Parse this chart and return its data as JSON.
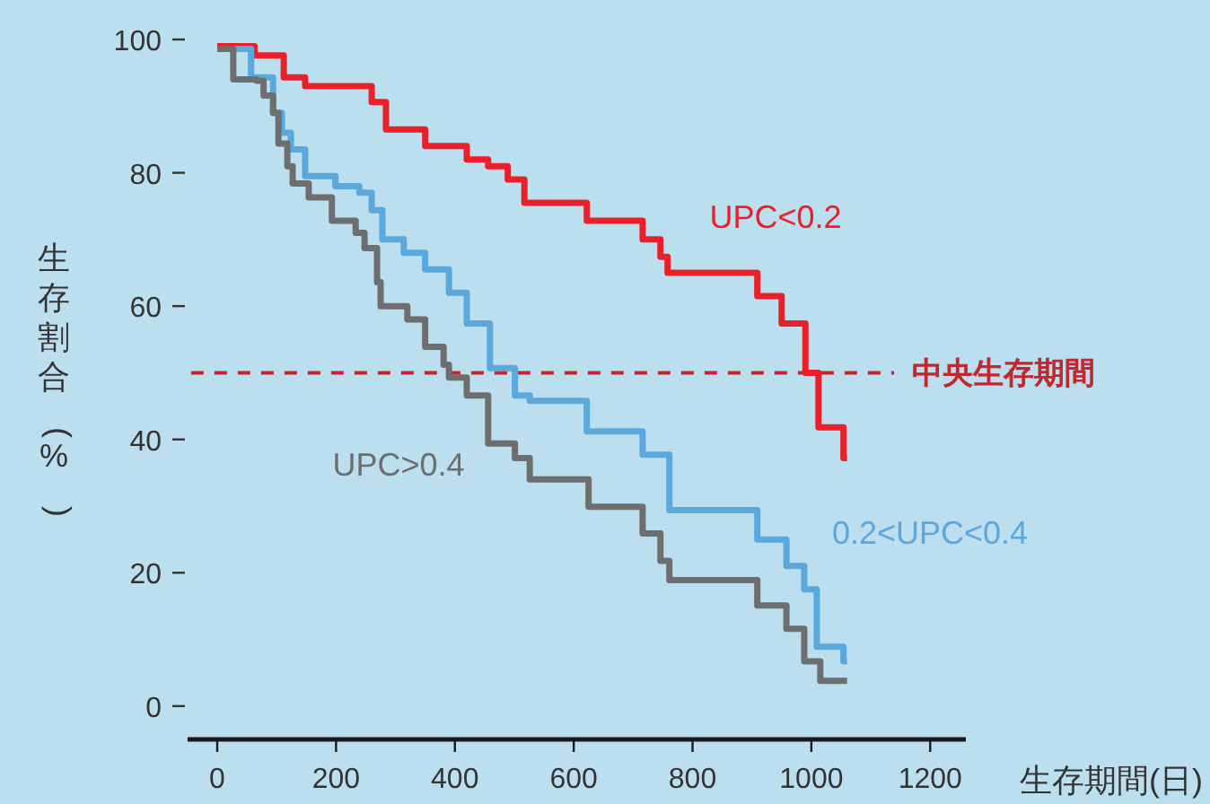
{
  "chart_data": {
    "type": "step",
    "xlabel": "生存期間(日)",
    "ylabel": "生存割合(%)",
    "xlim": [
      -50,
      1260
    ],
    "ylim": [
      -5,
      100
    ],
    "xticks": [
      0,
      200,
      400,
      600,
      800,
      1000,
      1200
    ],
    "yticks": [
      0,
      20,
      40,
      60,
      80,
      100
    ],
    "grid": false,
    "line_style": "solid",
    "ref_lines": [
      {
        "axis": "y",
        "value": 50,
        "label": "中央生存期間",
        "color": "#c0282d",
        "line_style": "dashed"
      }
    ],
    "series": [
      {
        "name": "UPC<0.2",
        "color": "#e8202a",
        "x": [
          0,
          63,
          112,
          148,
          260,
          284,
          350,
          420,
          456,
          489,
          517,
          622,
          716,
          746,
          758,
          909,
          950,
          990,
          1012,
          1054,
          1060
        ],
        "values": [
          99,
          97.6,
          94.3,
          93,
          90.6,
          86.5,
          84,
          82,
          81,
          79,
          75.5,
          72.8,
          70,
          67.4,
          65,
          61.5,
          57.4,
          50,
          41.8,
          37.2,
          37.2
        ]
      },
      {
        "name": "0.2<UPC<0.4",
        "color": "#5aa8dc",
        "x": [
          0,
          57,
          94,
          109,
          124,
          148,
          199,
          239,
          260,
          278,
          314,
          350,
          390,
          420,
          459,
          501,
          526,
          622,
          716,
          761,
          909,
          958,
          988,
          1009,
          1054,
          1060
        ],
        "values": [
          98.6,
          94.3,
          89,
          86,
          83.5,
          79.5,
          78,
          77,
          74.4,
          70,
          68,
          65.5,
          62,
          57.4,
          50.7,
          46.6,
          45.8,
          41.2,
          37.7,
          29.4,
          25,
          21,
          17.5,
          8.9,
          6.7,
          6.7
        ]
      },
      {
        "name": "UPC>0.4",
        "color": "#6e6e6e",
        "x": [
          0,
          27,
          66,
          78,
          94,
          103,
          118,
          127,
          154,
          193,
          233,
          248,
          269,
          275,
          320,
          350,
          381,
          390,
          420,
          456,
          501,
          526,
          625,
          716,
          746,
          761,
          909,
          958,
          988,
          1015,
          1060
        ],
        "values": [
          98.6,
          94,
          93.8,
          91.6,
          89,
          84.4,
          81,
          78.4,
          76.3,
          72.8,
          71,
          68.7,
          63.6,
          60,
          58,
          53.9,
          51.2,
          49.3,
          46.6,
          39.4,
          37.2,
          34,
          29.9,
          25.9,
          21.8,
          18.9,
          15.1,
          11.6,
          6.7,
          3.8,
          3.8
        ]
      }
    ]
  }
}
